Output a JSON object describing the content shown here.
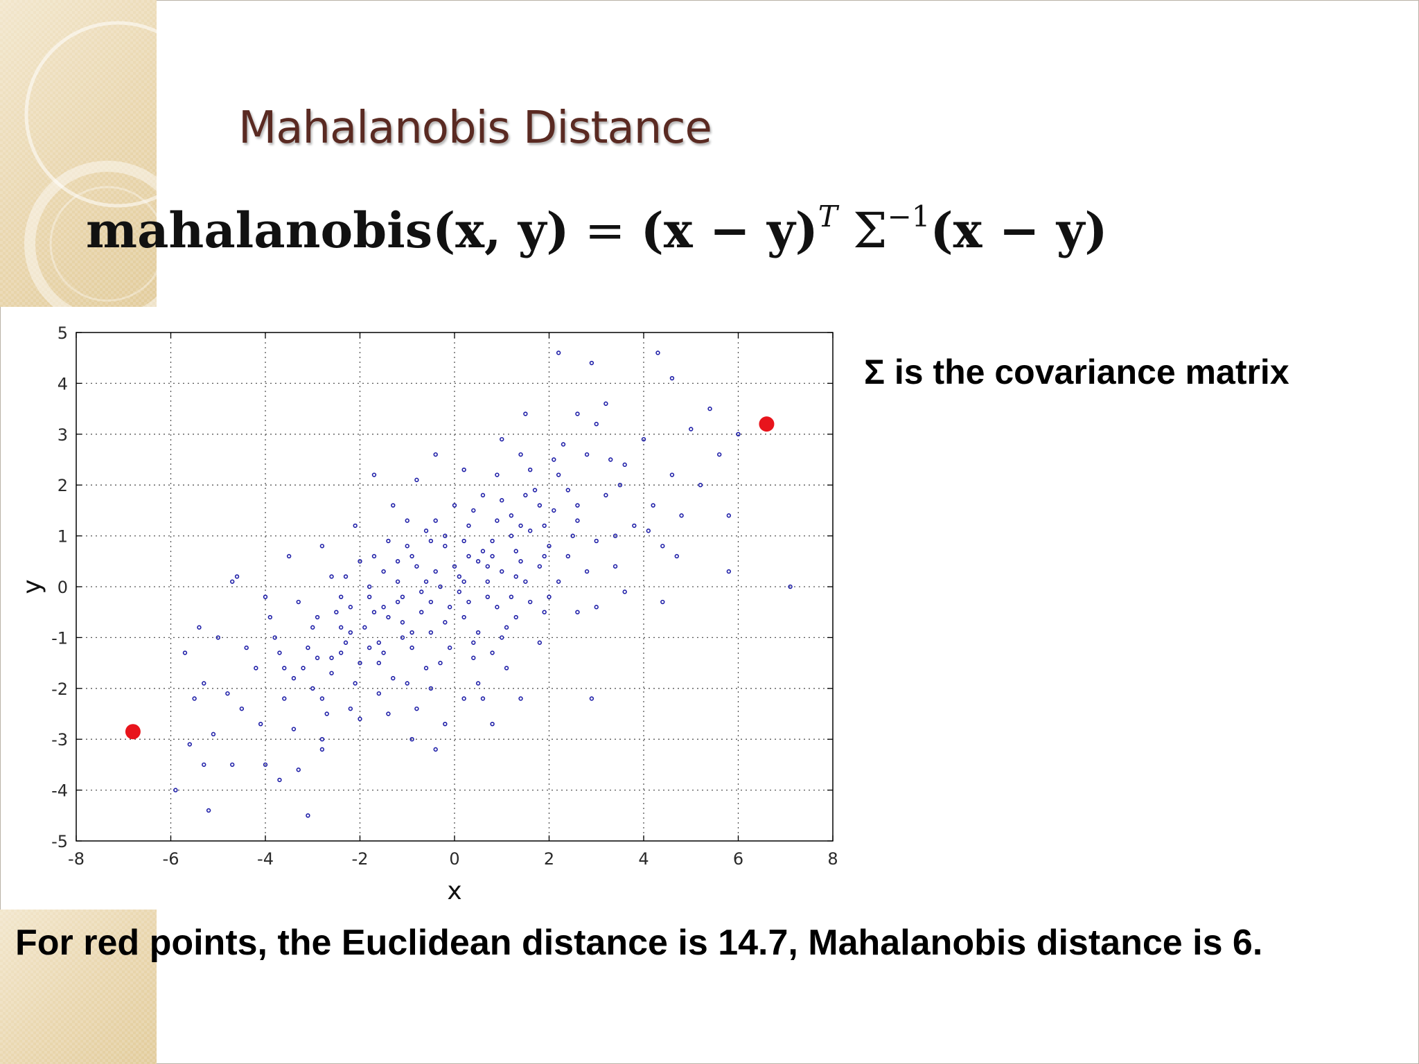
{
  "slide": {
    "title": "Mahalanobis Distance",
    "formula": {
      "lhs": "mahalanobis(x, y)",
      "eq": "=",
      "term1": "(x − y)",
      "exp_t": "T",
      "sigma": "Σ",
      "exp_inv": "−1",
      "term2": "(x − y)"
    },
    "sigma_note": "Σ is the covariance matrix",
    "bottom_note": "For red points, the Euclidean distance is 14.7, Mahalanobis distance is 6."
  },
  "chart_data": {
    "type": "scatter",
    "title": "",
    "xlabel": "x",
    "ylabel": "y",
    "xlim": [
      -8,
      8
    ],
    "ylim": [
      -5,
      5
    ],
    "xticks": [
      -8,
      -6,
      -4,
      -2,
      0,
      2,
      4,
      6,
      8
    ],
    "yticks": [
      -5,
      -4,
      -3,
      -2,
      -1,
      0,
      1,
      2,
      3,
      4,
      5
    ],
    "grid": "dotted",
    "series": [
      {
        "color": "#1f1fa8",
        "marker": "small dot",
        "points": [
          [
            -5.7,
            -1.3
          ],
          [
            -5.4,
            -0.8
          ],
          [
            -5.0,
            -1.0
          ],
          [
            -4.6,
            0.2
          ],
          [
            -4.7,
            0.1
          ],
          [
            -5.5,
            -2.2
          ],
          [
            -5.3,
            -1.9
          ],
          [
            -5.1,
            -2.9
          ],
          [
            -4.7,
            -3.5
          ],
          [
            -5.3,
            -3.5
          ],
          [
            -5.2,
            -4.4
          ],
          [
            -5.9,
            -4.0
          ],
          [
            -5.6,
            -3.1
          ],
          [
            -4.5,
            -2.4
          ],
          [
            -4.0,
            -3.5
          ],
          [
            -3.7,
            -3.8
          ],
          [
            -3.1,
            -4.5
          ],
          [
            -3.3,
            -3.6
          ],
          [
            -2.8,
            -3.0
          ],
          [
            -2.8,
            -3.2
          ],
          [
            -2.2,
            -2.4
          ],
          [
            -2.4,
            -1.3
          ],
          [
            -0.4,
            -3.2
          ],
          [
            -0.9,
            -3.0
          ],
          [
            0.2,
            -2.2
          ],
          [
            0.8,
            -2.7
          ],
          [
            1.4,
            -2.2
          ],
          [
            0.6,
            -2.2
          ],
          [
            2.9,
            -2.2
          ],
          [
            -4.2,
            -1.6
          ],
          [
            -3.8,
            -1.0
          ],
          [
            -3.9,
            -0.6
          ],
          [
            -3.6,
            -2.2
          ],
          [
            -3.4,
            -1.8
          ],
          [
            -3.1,
            -1.2
          ],
          [
            -2.9,
            -0.6
          ],
          [
            -2.6,
            -1.4
          ],
          [
            -2.5,
            -0.5
          ],
          [
            -2.3,
            0.2
          ],
          [
            -2.2,
            -0.9
          ],
          [
            -2.0,
            -1.5
          ],
          [
            -1.8,
            -0.2
          ],
          [
            -1.7,
            0.6
          ],
          [
            -1.6,
            -1.1
          ],
          [
            -1.5,
            -0.4
          ],
          [
            -1.4,
            0.9
          ],
          [
            -1.3,
            -1.8
          ],
          [
            -1.2,
            0.1
          ],
          [
            -1.1,
            -0.7
          ],
          [
            -1.0,
            1.3
          ],
          [
            -0.9,
            -1.2
          ],
          [
            -0.8,
            0.4
          ],
          [
            -0.7,
            -0.1
          ],
          [
            -0.6,
            1.1
          ],
          [
            -0.5,
            -0.9
          ],
          [
            -0.4,
            0.3
          ],
          [
            -0.3,
            -1.5
          ],
          [
            -0.2,
            0.8
          ],
          [
            -0.1,
            -0.4
          ],
          [
            0.0,
            1.6
          ],
          [
            0.1,
            0.2
          ],
          [
            0.2,
            -0.6
          ],
          [
            0.3,
            1.2
          ],
          [
            0.4,
            -1.1
          ],
          [
            0.5,
            0.5
          ],
          [
            0.6,
            1.8
          ],
          [
            0.7,
            -0.2
          ],
          [
            0.8,
            0.9
          ],
          [
            0.9,
            2.2
          ],
          [
            1.0,
            0.3
          ],
          [
            1.1,
            -0.8
          ],
          [
            1.2,
            1.4
          ],
          [
            1.3,
            0.7
          ],
          [
            1.4,
            2.6
          ],
          [
            1.5,
            0.1
          ],
          [
            1.6,
            1.1
          ],
          [
            1.7,
            1.9
          ],
          [
            1.8,
            0.4
          ],
          [
            1.9,
            -0.5
          ],
          [
            2.0,
            0.8
          ],
          [
            2.1,
            1.5
          ],
          [
            2.2,
            2.2
          ],
          [
            2.4,
            0.6
          ],
          [
            2.6,
            1.3
          ],
          [
            2.8,
            2.6
          ],
          [
            3.0,
            0.9
          ],
          [
            3.2,
            1.8
          ],
          [
            3.4,
            0.4
          ],
          [
            3.6,
            2.4
          ],
          [
            3.8,
            1.2
          ],
          [
            4.0,
            2.9
          ],
          [
            4.2,
            1.6
          ],
          [
            4.4,
            0.8
          ],
          [
            4.6,
            2.2
          ],
          [
            4.8,
            1.4
          ],
          [
            5.0,
            3.1
          ],
          [
            5.2,
            2.0
          ],
          [
            5.4,
            3.5
          ],
          [
            5.6,
            2.6
          ],
          [
            5.8,
            1.4
          ],
          [
            6.0,
            3.0
          ],
          [
            5.8,
            0.3
          ],
          [
            2.2,
            4.6
          ],
          [
            2.9,
            4.4
          ],
          [
            4.3,
            4.6
          ],
          [
            4.6,
            4.1
          ],
          [
            3.2,
            3.6
          ],
          [
            2.6,
            3.4
          ],
          [
            7.1,
            0.0
          ],
          [
            4.4,
            -0.3
          ],
          [
            2.6,
            -0.5
          ],
          [
            3.0,
            -0.4
          ],
          [
            3.6,
            -0.1
          ],
          [
            1.8,
            -1.1
          ],
          [
            1.1,
            -1.6
          ],
          [
            0.5,
            -1.9
          ],
          [
            -0.5,
            -2.0
          ],
          [
            -1.6,
            -2.1
          ],
          [
            -2.8,
            -2.2
          ],
          [
            -3.2,
            -1.6
          ],
          [
            -3.7,
            -1.3
          ],
          [
            -4.4,
            -1.2
          ],
          [
            -4.0,
            -0.2
          ],
          [
            -3.5,
            0.6
          ],
          [
            -2.8,
            0.8
          ],
          [
            -2.1,
            1.2
          ],
          [
            -1.7,
            2.2
          ],
          [
            -1.3,
            1.6
          ],
          [
            -0.8,
            2.1
          ],
          [
            -0.4,
            2.6
          ],
          [
            0.2,
            2.3
          ],
          [
            1.0,
            2.9
          ],
          [
            1.5,
            3.4
          ],
          [
            1.2,
            -0.2
          ],
          [
            0.7,
            0.1
          ],
          [
            0.3,
            -0.3
          ],
          [
            -0.3,
            0.0
          ],
          [
            -0.7,
            -0.5
          ],
          [
            -1.1,
            -0.2
          ],
          [
            -1.4,
            -0.6
          ],
          [
            -1.9,
            -0.8
          ],
          [
            -2.3,
            -1.1
          ],
          [
            -2.6,
            -1.7
          ],
          [
            -3.0,
            -2.0
          ],
          [
            -2.0,
            -2.6
          ],
          [
            -1.4,
            -2.5
          ],
          [
            -0.8,
            -2.4
          ],
          [
            -0.2,
            -2.7
          ],
          [
            0.4,
            -1.4
          ],
          [
            1.0,
            -1.0
          ],
          [
            1.6,
            -0.3
          ],
          [
            2.2,
            0.1
          ],
          [
            2.8,
            0.3
          ],
          [
            3.4,
            1.0
          ],
          [
            2.4,
            1.9
          ],
          [
            1.8,
            1.6
          ],
          [
            1.2,
            1.0
          ],
          [
            0.6,
            0.7
          ],
          [
            0.0,
            0.4
          ],
          [
            -0.6,
            0.1
          ],
          [
            -1.2,
            -0.3
          ],
          [
            -1.8,
            -1.2
          ],
          [
            -2.4,
            -0.2
          ],
          [
            -3.0,
            -0.8
          ],
          [
            -3.3,
            -0.3
          ],
          [
            -1.5,
            0.3
          ],
          [
            -0.9,
            0.6
          ],
          [
            -0.2,
            1.0
          ],
          [
            0.4,
            1.5
          ],
          [
            1.0,
            1.7
          ],
          [
            1.6,
            2.3
          ],
          [
            2.3,
            2.8
          ],
          [
            3.0,
            3.2
          ],
          [
            3.5,
            2.0
          ],
          [
            4.1,
            1.1
          ],
          [
            4.7,
            0.6
          ],
          [
            0.9,
            -0.4
          ],
          [
            0.5,
            -0.9
          ],
          [
            -0.1,
            -1.2
          ],
          [
            -0.6,
            -1.6
          ],
          [
            -1.0,
            -1.9
          ],
          [
            -1.6,
            -1.5
          ],
          [
            -2.1,
            -1.9
          ],
          [
            -2.7,
            -2.5
          ],
          [
            -3.4,
            -2.8
          ],
          [
            -4.1,
            -2.7
          ],
          [
            -4.8,
            -2.1
          ],
          [
            1.4,
            0.5
          ],
          [
            1.9,
            1.2
          ],
          [
            2.5,
            1.0
          ],
          [
            0.2,
            0.9
          ],
          [
            -0.4,
            1.3
          ],
          [
            -1.0,
            0.8
          ],
          [
            -2.0,
            0.5
          ],
          [
            -2.6,
            0.2
          ],
          [
            0.8,
            -1.3
          ],
          [
            1.3,
            -0.6
          ],
          [
            2.0,
            -0.2
          ],
          [
            -0.2,
            -0.7
          ],
          [
            -0.9,
            -0.9
          ],
          [
            -1.5,
            -1.3
          ],
          [
            0.3,
            0.6
          ],
          [
            0.9,
            1.3
          ],
          [
            1.5,
            1.8
          ],
          [
            2.1,
            2.5
          ],
          [
            -2.2,
            -0.4
          ],
          [
            -1.8,
            0.0
          ],
          [
            -1.2,
            0.5
          ],
          [
            -0.5,
            0.9
          ],
          [
            0.1,
            -0.1
          ],
          [
            0.7,
            0.4
          ],
          [
            1.3,
            0.2
          ],
          [
            1.9,
            0.6
          ],
          [
            2.6,
            1.6
          ],
          [
            3.3,
            2.5
          ],
          [
            -3.6,
            -1.6
          ],
          [
            -2.9,
            -1.4
          ],
          [
            -2.4,
            -0.8
          ],
          [
            -1.7,
            -0.5
          ],
          [
            -1.1,
            -1.0
          ],
          [
            -0.5,
            -0.3
          ],
          [
            0.2,
            0.1
          ],
          [
            0.8,
            0.6
          ],
          [
            1.4,
            1.2
          ]
        ]
      },
      {
        "color": "#e8141c",
        "marker": "large dot",
        "points": [
          [
            -6.8,
            -2.85
          ],
          [
            6.6,
            3.2
          ]
        ]
      }
    ]
  }
}
